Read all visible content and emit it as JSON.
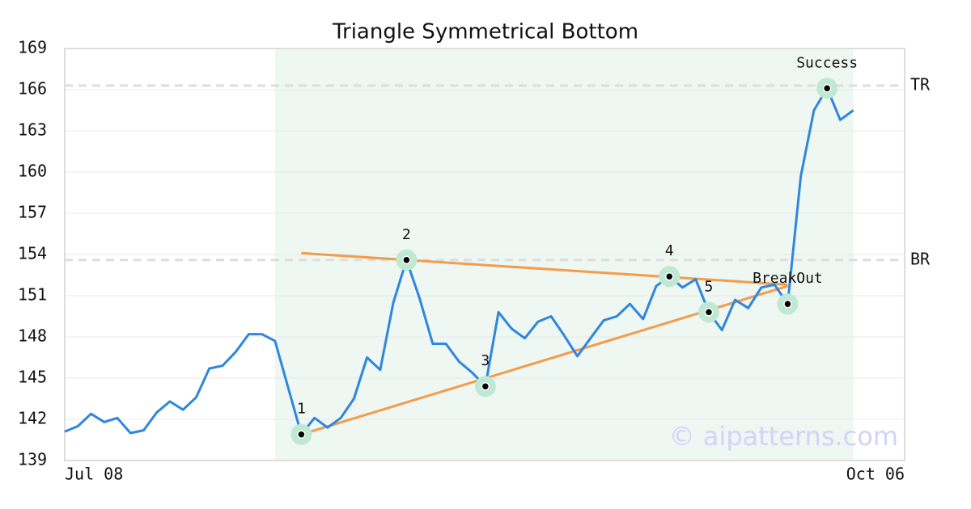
{
  "chart_data": {
    "type": "line",
    "title": "Triangle Symmetrical Bottom",
    "watermark": "© aipatterns.com",
    "xlim": [
      0,
      63.9
    ],
    "xticks": [
      {
        "value": 0,
        "label": "Jul 08"
      },
      {
        "value": 63.9,
        "label": "Oct 06"
      }
    ],
    "ylim": [
      139,
      169
    ],
    "yticks": [
      139,
      142,
      145,
      148,
      151,
      154,
      157,
      160,
      163,
      166,
      169
    ],
    "grid": true,
    "series": [
      {
        "color": "#2e86de",
        "values": [
          141.1,
          141.5,
          142.4,
          141.8,
          142.1,
          141.0,
          141.2,
          142.5,
          143.3,
          142.7,
          143.6,
          145.7,
          145.9,
          146.9,
          148.2,
          148.2,
          147.7,
          144.3,
          140.9,
          142.1,
          141.4,
          142.1,
          143.5,
          146.5,
          145.6,
          150.5,
          153.6,
          150.8,
          147.5,
          147.5,
          146.2,
          145.4,
          144.4,
          149.8,
          148.6,
          147.9,
          149.1,
          149.5,
          148.1,
          146.6,
          147.9,
          149.2,
          149.5,
          150.4,
          149.3,
          151.7,
          152.4,
          151.6,
          152.2,
          149.8,
          148.5,
          150.7,
          150.1,
          151.6,
          151.8,
          150.4,
          159.7,
          164.5,
          166.1,
          163.8,
          164.5
        ]
      }
    ],
    "highlight": {
      "xlim": [
        16,
        60
      ],
      "color": "#eef7f2"
    },
    "trendlines": [
      {
        "color": "#f39c4a",
        "x": [
          18,
          55
        ],
        "y": [
          154.1,
          151.8
        ]
      },
      {
        "color": "#f39c4a",
        "x": [
          18,
          55
        ],
        "y": [
          140.9,
          151.7
        ]
      }
    ],
    "levels": [
      {
        "label": "TR",
        "value": 166.3
      },
      {
        "label": "BR",
        "value": 153.6
      }
    ],
    "points": [
      {
        "label": "1",
        "x": 18
      },
      {
        "label": "2",
        "x": 26
      },
      {
        "label": "3",
        "x": 32
      },
      {
        "label": "4",
        "x": 46
      },
      {
        "label": "5",
        "x": 49
      },
      {
        "label": "BreakOut",
        "x": 55
      },
      {
        "label": "Success",
        "x": 58
      }
    ]
  }
}
